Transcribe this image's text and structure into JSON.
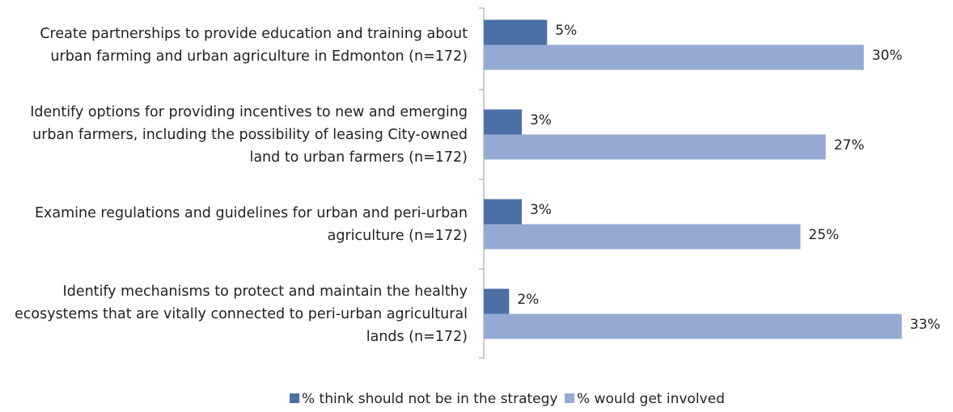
{
  "chart_data": {
    "type": "hbar",
    "categories": [
      "Create partnerships to provide education and training about urban farming and urban agriculture in Edmonton (n=172)",
      "Identify options for providing incentives to new and emerging urban farmers, including the possibility of leasing City-owned land to urban farmers (n=172)",
      "Examine regulations and guidelines for urban and peri-urban agriculture (n=172)",
      "Identify mechanisms to protect and maintain the healthy ecosystems that are vitally connected to peri-urban agricultural lands (n=172)"
    ],
    "series": [
      {
        "name": "% think should not be in the strategy",
        "color": "#4a70a6",
        "values": [
          5,
          3,
          3,
          2
        ],
        "value_labels": [
          "5%",
          "3%",
          "3%",
          "2%"
        ]
      },
      {
        "name": "% would get involved",
        "color": "#94aad2",
        "values": [
          30,
          27,
          25,
          33
        ],
        "value_labels": [
          "30%",
          "27%",
          "25%",
          "33%"
        ]
      }
    ],
    "xlim": [
      0,
      35
    ]
  }
}
